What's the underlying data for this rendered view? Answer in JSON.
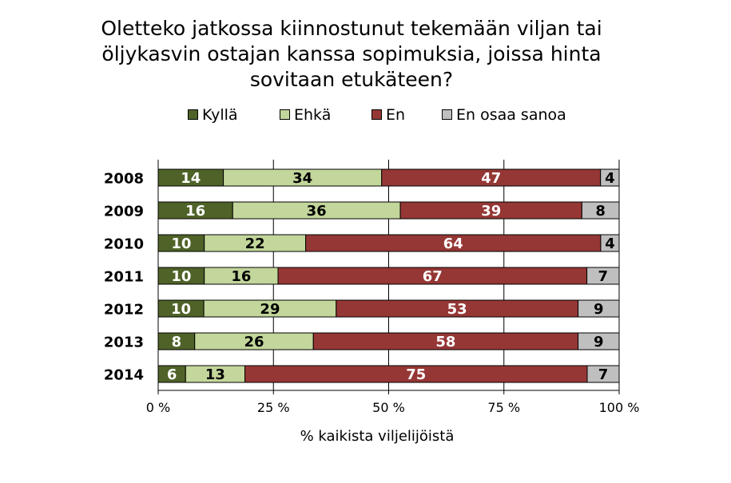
{
  "chart_data": {
    "type": "bar",
    "orientation": "horizontal",
    "stacked": true,
    "normalized": true,
    "title_lines": [
      "Oletteko jatkossa kiinnostunut tekemään viljan tai",
      "öljykasvin ostajan kanssa sopimuksia, joissa hinta",
      "sovitaan etukäteen?"
    ],
    "xlabel": "% kaikista viljelijöistä",
    "ylabel": "",
    "xlim": [
      0,
      100
    ],
    "x_ticks": [
      "0 %",
      "25 %",
      "50 %",
      "75 %",
      "100 %"
    ],
    "categories": [
      "2008",
      "2009",
      "2010",
      "2011",
      "2012",
      "2013",
      "2014"
    ],
    "series": [
      {
        "name": "Kyllä",
        "color": "#4f6228",
        "label_color": "#ffffff",
        "values": [
          14,
          16,
          10,
          10,
          10,
          8,
          6
        ]
      },
      {
        "name": "Ehkä",
        "color": "#c3d69b",
        "label_color": "#000000",
        "values": [
          34,
          36,
          22,
          16,
          29,
          26,
          13
        ]
      },
      {
        "name": "En",
        "color": "#953735",
        "label_color": "#ffffff",
        "values": [
          47,
          39,
          64,
          67,
          53,
          58,
          75
        ]
      },
      {
        "name": "En osaa sanoa",
        "color": "#bfbfbf",
        "label_color": "#000000",
        "values": [
          4,
          8,
          4,
          7,
          9,
          9,
          7
        ]
      }
    ],
    "gridlines": true,
    "legend_position": "top"
  }
}
